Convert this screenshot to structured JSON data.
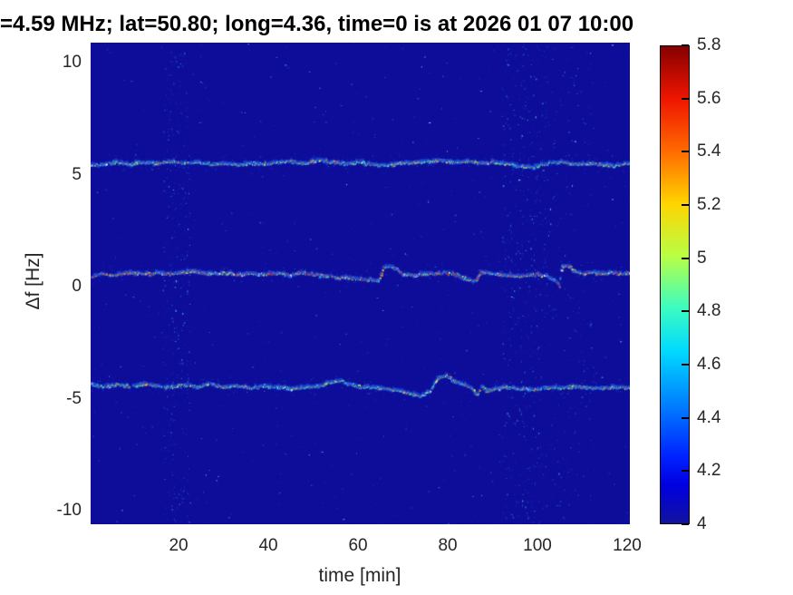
{
  "header": {
    "title": "=4.59 MHz;  lat=50.80; long=4.36, time=0 is at 2026 01 07 10:00"
  },
  "axes": {
    "xlabel": "time [min]",
    "ylabel": "Δf [Hz]",
    "x_ticks": [
      20,
      40,
      60,
      80,
      100,
      120
    ],
    "y_ticks": [
      10,
      5,
      0,
      -5,
      -10
    ],
    "xlim": [
      0.4,
      120.6
    ],
    "ylim": [
      -10.6,
      10.9
    ],
    "tick_color": "#262626"
  },
  "colorbar": {
    "tick_labels": [
      "5.8",
      "5.6",
      "5.4",
      "5.2",
      "5",
      "4.8",
      "4.6",
      "4.4",
      "4.2",
      "4"
    ],
    "tick_values": [
      5.8,
      5.6,
      5.4,
      5.2,
      5.0,
      4.8,
      4.6,
      4.4,
      4.2,
      4.0
    ],
    "clim": [
      4,
      5.8
    ]
  },
  "chart_data": {
    "type": "heatmap",
    "title": "=4.59 MHz;  lat=50.80; long=4.36, time=0 is at 2026 01 07 10:00",
    "xlabel": "time [min]",
    "ylabel": "Δf [Hz]",
    "xlim": [
      0.4,
      120.6
    ],
    "ylim": [
      -10.6,
      10.9
    ],
    "clim": [
      4,
      5.8
    ],
    "colormap_name": "jet",
    "background_value": 4.05,
    "background_color": "#0d0d9a",
    "colormap": [
      [
        0.0,
        "#12129E"
      ],
      [
        0.08,
        "#0000E0"
      ],
      [
        0.14,
        "#0022FF"
      ],
      [
        0.25,
        "#0080FF"
      ],
      [
        0.36,
        "#00D9FF"
      ],
      [
        0.45,
        "#3AFCC2"
      ],
      [
        0.56,
        "#B8FF45"
      ],
      [
        0.67,
        "#FFD500"
      ],
      [
        0.78,
        "#FF6A00"
      ],
      [
        0.89,
        "#EE1500"
      ],
      [
        1.0,
        "#860000"
      ]
    ],
    "traces": [
      {
        "name": "upper-doppler-trace",
        "mean_hz": 5.55,
        "palette": "trace_outer",
        "keypoints": [
          [
            0.4,
            5.45
          ],
          [
            3,
            5.5
          ],
          [
            6,
            5.58
          ],
          [
            9,
            5.5
          ],
          [
            12,
            5.6
          ],
          [
            15,
            5.55
          ],
          [
            18,
            5.62
          ],
          [
            21,
            5.55
          ],
          [
            24,
            5.6
          ],
          [
            27,
            5.5
          ],
          [
            30,
            5.55
          ],
          [
            33,
            5.48
          ],
          [
            36,
            5.55
          ],
          [
            39,
            5.5
          ],
          [
            42,
            5.6
          ],
          [
            45,
            5.62
          ],
          [
            48,
            5.55
          ],
          [
            51,
            5.68
          ],
          [
            54,
            5.6
          ],
          [
            57,
            5.52
          ],
          [
            60,
            5.58
          ],
          [
            63,
            5.5
          ],
          [
            66,
            5.45
          ],
          [
            69,
            5.52
          ],
          [
            72,
            5.58
          ],
          [
            75,
            5.62
          ],
          [
            78,
            5.68
          ],
          [
            81,
            5.58
          ],
          [
            84,
            5.64
          ],
          [
            87,
            5.55
          ],
          [
            90,
            5.6
          ],
          [
            93,
            5.5
          ],
          [
            96,
            5.42
          ],
          [
            99,
            5.38
          ],
          [
            102,
            5.52
          ],
          [
            105,
            5.6
          ],
          [
            108,
            5.5
          ],
          [
            111,
            5.55
          ],
          [
            114,
            5.5
          ],
          [
            117,
            5.42
          ],
          [
            119,
            5.5
          ],
          [
            120.6,
            5.52
          ]
        ]
      },
      {
        "name": "center-doppler-trace",
        "mean_hz": 0.6,
        "palette": "trace_center",
        "keypoints": [
          [
            0.4,
            0.52
          ],
          [
            3,
            0.62
          ],
          [
            6,
            0.55
          ],
          [
            9,
            0.68
          ],
          [
            12,
            0.58
          ],
          [
            15,
            0.65
          ],
          [
            18,
            0.6
          ],
          [
            21,
            0.68
          ],
          [
            24,
            0.72
          ],
          [
            27,
            0.6
          ],
          [
            30,
            0.66
          ],
          [
            33,
            0.58
          ],
          [
            36,
            0.62
          ],
          [
            39,
            0.58
          ],
          [
            42,
            0.64
          ],
          [
            45,
            0.55
          ],
          [
            47,
            0.65
          ],
          [
            50,
            0.58
          ],
          [
            53,
            0.5
          ],
          [
            56,
            0.44
          ],
          [
            59,
            0.4
          ],
          [
            62,
            0.34
          ],
          [
            64.5,
            0.3
          ],
          [
            65.5,
            0.85
          ],
          [
            67,
            0.95
          ],
          [
            68.5,
            0.82
          ],
          [
            70,
            0.6
          ],
          [
            73,
            0.55
          ],
          [
            76,
            0.62
          ],
          [
            79,
            0.66
          ],
          [
            82,
            0.55
          ],
          [
            84.5,
            0.35
          ],
          [
            86,
            0.3
          ],
          [
            87,
            0.62
          ],
          [
            88.5,
            0.68
          ],
          [
            90,
            0.6
          ],
          [
            93,
            0.55
          ],
          [
            96,
            0.5
          ],
          [
            99,
            0.6
          ],
          [
            102,
            0.5
          ],
          [
            104,
            0.3
          ],
          [
            104.8,
            0.05
          ],
          [
            105.3,
            0.9
          ],
          [
            106.5,
            1.0
          ],
          [
            108,
            0.75
          ],
          [
            110,
            0.6
          ],
          [
            112,
            0.68
          ],
          [
            114,
            0.6
          ],
          [
            116,
            0.68
          ],
          [
            118,
            0.62
          ],
          [
            120.6,
            0.66
          ]
        ]
      },
      {
        "name": "lower-doppler-trace",
        "mean_hz": -4.4,
        "palette": "trace_outer",
        "keypoints": [
          [
            0.4,
            -4.3
          ],
          [
            3,
            -4.42
          ],
          [
            6,
            -4.35
          ],
          [
            9,
            -4.42
          ],
          [
            12,
            -4.32
          ],
          [
            15,
            -4.4
          ],
          [
            18,
            -4.45
          ],
          [
            21,
            -4.35
          ],
          [
            24,
            -4.42
          ],
          [
            27,
            -4.3
          ],
          [
            30,
            -4.45
          ],
          [
            33,
            -4.4
          ],
          [
            36,
            -4.48
          ],
          [
            39,
            -4.4
          ],
          [
            42,
            -4.46
          ],
          [
            45,
            -4.52
          ],
          [
            48,
            -4.45
          ],
          [
            51,
            -4.4
          ],
          [
            54,
            -4.2
          ],
          [
            56,
            -4.15
          ],
          [
            58,
            -4.32
          ],
          [
            60,
            -4.42
          ],
          [
            63,
            -4.46
          ],
          [
            66,
            -4.52
          ],
          [
            69,
            -4.58
          ],
          [
            72,
            -4.78
          ],
          [
            74,
            -4.85
          ],
          [
            76,
            -4.6
          ],
          [
            78,
            -3.98
          ],
          [
            79.5,
            -3.92
          ],
          [
            81,
            -4.12
          ],
          [
            83,
            -4.32
          ],
          [
            85,
            -4.45
          ],
          [
            86.5,
            -4.82
          ],
          [
            87.5,
            -4.4
          ],
          [
            88.5,
            -4.62
          ],
          [
            90,
            -4.52
          ],
          [
            93,
            -4.46
          ],
          [
            96,
            -4.52
          ],
          [
            99,
            -4.56
          ],
          [
            102,
            -4.46
          ],
          [
            105,
            -4.5
          ],
          [
            108,
            -4.42
          ],
          [
            111,
            -4.46
          ],
          [
            114,
            -4.5
          ],
          [
            117,
            -4.46
          ],
          [
            120.6,
            -4.45
          ]
        ]
      }
    ],
    "noise_bands": [
      {
        "t0": 16.5,
        "t1": 22.5,
        "density": 420
      },
      {
        "t0": 92.0,
        "t1": 102.0,
        "density": 560
      },
      {
        "t0": 102.0,
        "t1": 112.0,
        "density": 220
      }
    ],
    "noise": {
      "speckle_count": 2600,
      "fuzz_per_trace": 650
    },
    "palettes": {
      "speckle": [
        [
          "#1313a8",
          0.45
        ],
        [
          "#1919bd",
          0.3
        ],
        [
          "#2230d2",
          0.13
        ],
        [
          "#2b7de0",
          0.08
        ],
        [
          "#55c8f0",
          0.03
        ],
        [
          "#c8f0ff",
          0.01
        ]
      ],
      "band": [
        [
          "#1c2fc4",
          0.4
        ],
        [
          "#2452d8",
          0.3
        ],
        [
          "#2f9fe2",
          0.2
        ],
        [
          "#6fe3f2",
          0.1
        ]
      ],
      "fuzz": [
        [
          "#1627b8",
          0.55
        ],
        [
          "#1e3ed0",
          0.3
        ],
        [
          "#2a85dd",
          0.15
        ]
      ],
      "trace_outer": [
        [
          "#35e0d0",
          0.3
        ],
        [
          "#57f08a",
          0.2
        ],
        [
          "#b8f542",
          0.17
        ],
        [
          "#ffe12e",
          0.15
        ],
        [
          "#ff8c1a",
          0.1
        ],
        [
          "#e8fdff",
          0.08
        ]
      ],
      "trace_center": [
        [
          "#35e0d0",
          0.2
        ],
        [
          "#8df05a",
          0.16
        ],
        [
          "#ffe12e",
          0.2
        ],
        [
          "#ff8c1a",
          0.17
        ],
        [
          "#ff3300",
          0.15
        ],
        [
          "#ffffff",
          0.12
        ]
      ]
    }
  }
}
